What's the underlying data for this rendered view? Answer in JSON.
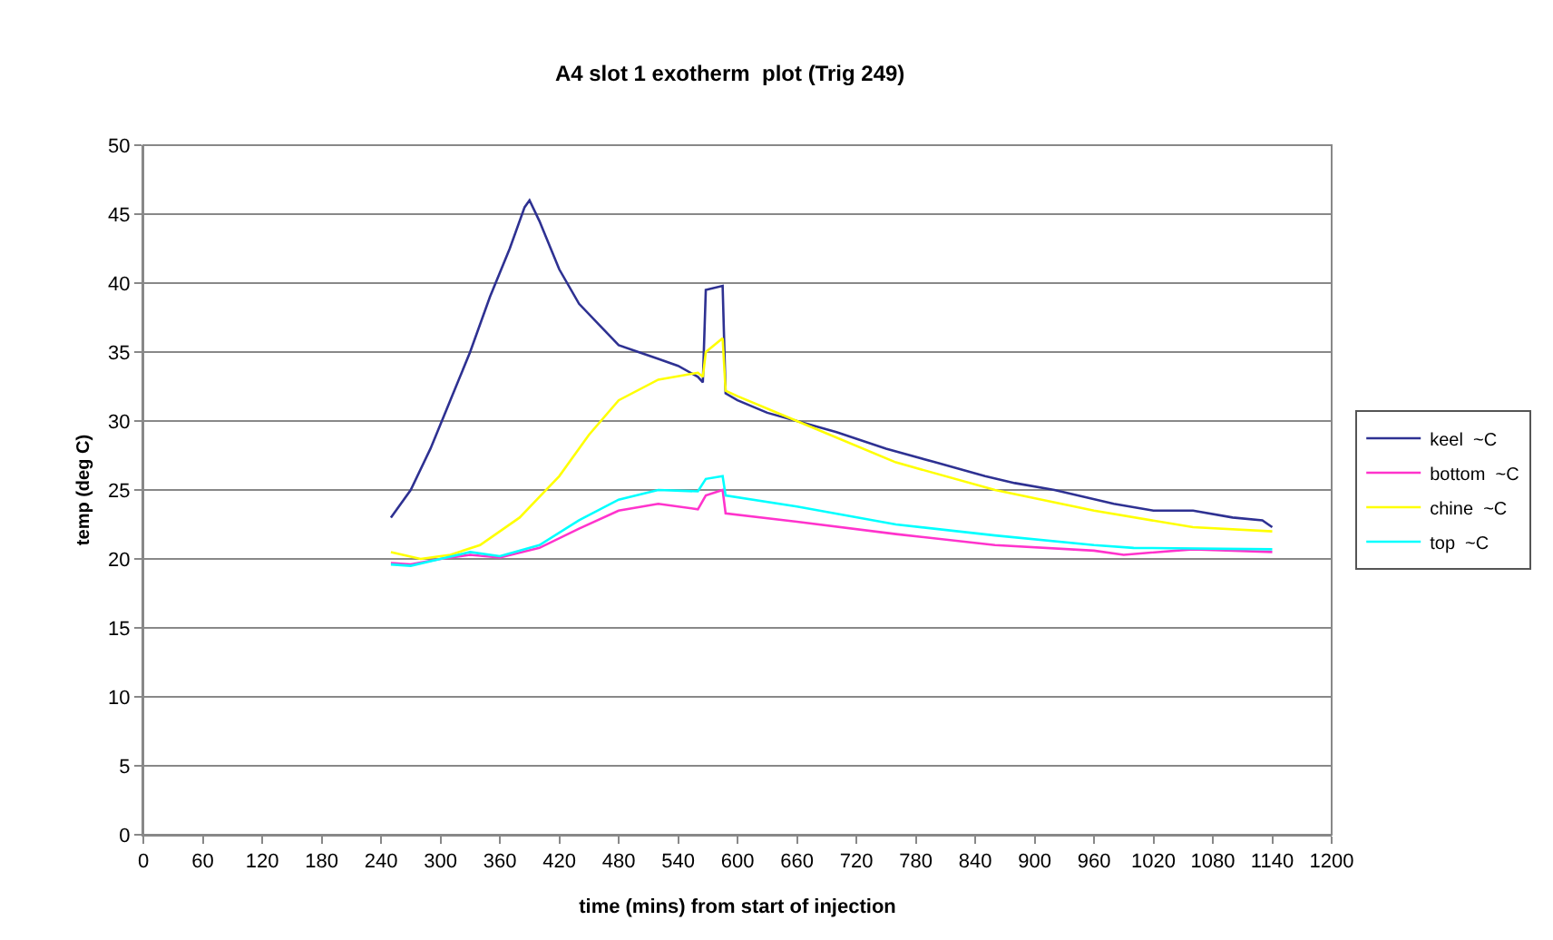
{
  "chart_data": {
    "type": "line",
    "title": "A4 slot 1 exotherm  plot (Trig 249)",
    "xlabel": "time (mins) from start of injection",
    "ylabel": "temp (deg C)",
    "xlim": [
      0,
      1200
    ],
    "xticks": [
      0,
      60,
      120,
      180,
      240,
      300,
      360,
      420,
      480,
      540,
      600,
      660,
      720,
      780,
      840,
      900,
      960,
      1020,
      1080,
      1140,
      1200
    ],
    "ylim": [
      0,
      50
    ],
    "yticks": [
      0,
      5,
      10,
      15,
      20,
      25,
      30,
      35,
      40,
      45,
      50
    ],
    "grid": "y",
    "legend": "right",
    "marker": "none",
    "line_style": "solid",
    "series": [
      {
        "name": "keel  ~C",
        "color": "#2e3192",
        "x": [
          250,
          270,
          290,
          310,
          330,
          350,
          370,
          385,
          390,
          400,
          420,
          440,
          460,
          480,
          500,
          520,
          540,
          560,
          565,
          568,
          585,
          588,
          600,
          630,
          660,
          700,
          750,
          800,
          850,
          880,
          920,
          980,
          1020,
          1060,
          1100,
          1130,
          1140
        ],
        "values": [
          23,
          25,
          28,
          31.5,
          35,
          39,
          42.5,
          45.5,
          46,
          44.5,
          41,
          38.5,
          37,
          35.5,
          35,
          34.5,
          34,
          33.2,
          32.8,
          39.5,
          39.8,
          32,
          31.5,
          30.6,
          30,
          29.2,
          28,
          27,
          26,
          25.5,
          25,
          24,
          23.5,
          23.5,
          23,
          22.8,
          22.3
        ]
      },
      {
        "name": "bottom  ~C",
        "color": "#ff33cc",
        "x": [
          250,
          270,
          300,
          330,
          360,
          400,
          440,
          480,
          520,
          560,
          568,
          585,
          588,
          660,
          760,
          860,
          960,
          990,
          1060,
          1140
        ],
        "values": [
          19.7,
          19.6,
          20,
          20.3,
          20.1,
          20.8,
          22.2,
          23.5,
          24,
          23.6,
          24.6,
          25,
          23.3,
          22.7,
          21.8,
          21,
          20.6,
          20.3,
          20.7,
          20.5
        ]
      },
      {
        "name": "chine  ~C",
        "color": "#ffff00",
        "x": [
          250,
          280,
          310,
          340,
          360,
          380,
          400,
          420,
          450,
          480,
          520,
          560,
          565,
          568,
          585,
          588,
          600,
          660,
          760,
          860,
          960,
          1060,
          1140
        ],
        "values": [
          20.5,
          20,
          20.3,
          21,
          22,
          23,
          24.5,
          26,
          29,
          31.5,
          33,
          33.5,
          33.2,
          35,
          36,
          32.2,
          31.8,
          30,
          27,
          25,
          23.5,
          22.3,
          22
        ]
      },
      {
        "name": "top  ~C",
        "color": "#00ffff",
        "x": [
          250,
          270,
          300,
          330,
          360,
          400,
          440,
          480,
          520,
          560,
          568,
          585,
          588,
          660,
          760,
          860,
          960,
          1000,
          1140
        ],
        "values": [
          19.6,
          19.5,
          20,
          20.5,
          20.2,
          21,
          22.8,
          24.3,
          25,
          24.9,
          25.8,
          26,
          24.6,
          23.8,
          22.5,
          21.7,
          21,
          20.8,
          20.7
        ]
      }
    ]
  }
}
